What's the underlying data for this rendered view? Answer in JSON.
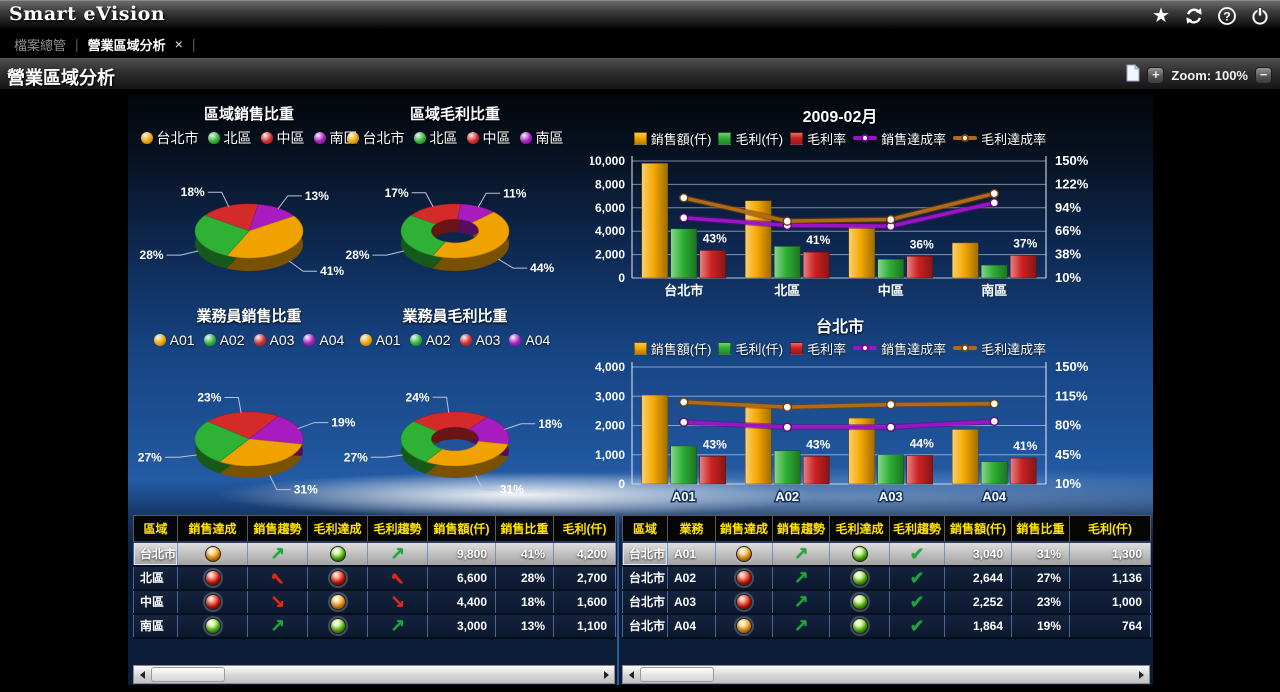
{
  "app": {
    "title": "Smart eVision"
  },
  "tabs": {
    "home": "檔案總管",
    "active": "營業區域分析",
    "close": "×",
    "separator": "|"
  },
  "toolbar": {
    "title": "營業區域分析",
    "zoom_in": "+",
    "zoom_out": "−",
    "zoom_label": "Zoom: 100%"
  },
  "chart_data": [
    {
      "type": "pie",
      "title": "區域銷售比重",
      "donut": false,
      "start_angle": -55,
      "legend": [
        {
          "label": "台北市",
          "color": "#f0a300"
        },
        {
          "label": "北區",
          "color": "#2eb135"
        },
        {
          "label": "中區",
          "color": "#d42a2a"
        },
        {
          "label": "南區",
          "color": "#a81bbf"
        }
      ],
      "slices": [
        {
          "label": "中區",
          "value": 18,
          "color": "#d42a2a"
        },
        {
          "label": "南區",
          "value": 13,
          "color": "#a81bbf"
        },
        {
          "label": "台北市",
          "value": 41,
          "color": "#f0a300"
        },
        {
          "label": "北區",
          "value": 28,
          "color": "#2eb135"
        }
      ]
    },
    {
      "type": "pie",
      "title": "區域毛利比重",
      "donut": true,
      "start_angle": -55,
      "legend": [
        {
          "label": "台北市",
          "color": "#f0a300"
        },
        {
          "label": "北區",
          "color": "#2eb135"
        },
        {
          "label": "中區",
          "color": "#d42a2a"
        },
        {
          "label": "南區",
          "color": "#a81bbf"
        }
      ],
      "slices": [
        {
          "label": "中區",
          "value": 17,
          "color": "#d42a2a"
        },
        {
          "label": "南區",
          "value": 11,
          "color": "#a81bbf"
        },
        {
          "label": "台北市",
          "value": 44,
          "color": "#f0a300"
        },
        {
          "label": "北區",
          "value": 28,
          "color": "#2eb135"
        }
      ]
    },
    {
      "type": "pie",
      "title": "業務員銷售比重",
      "donut": false,
      "start_angle": -50,
      "legend": [
        {
          "label": "A01",
          "color": "#f0a300"
        },
        {
          "label": "A02",
          "color": "#2eb135"
        },
        {
          "label": "A03",
          "color": "#d42a2a"
        },
        {
          "label": "A04",
          "color": "#a81bbf"
        }
      ],
      "slices": [
        {
          "label": "A03",
          "value": 23,
          "color": "#d42a2a"
        },
        {
          "label": "A04",
          "value": 19,
          "color": "#a81bbf"
        },
        {
          "label": "A01",
          "value": 31,
          "color": "#f0a300"
        },
        {
          "label": "A02",
          "value": 27,
          "color": "#2eb135"
        }
      ]
    },
    {
      "type": "pie",
      "title": "業務員毛利比重",
      "donut": true,
      "start_angle": -50,
      "legend": [
        {
          "label": "A01",
          "color": "#f0a300"
        },
        {
          "label": "A02",
          "color": "#2eb135"
        },
        {
          "label": "A03",
          "color": "#d42a2a"
        },
        {
          "label": "A04",
          "color": "#a81bbf"
        }
      ],
      "slices": [
        {
          "label": "A03",
          "value": 24,
          "color": "#d42a2a"
        },
        {
          "label": "A04",
          "value": 18,
          "color": "#a81bbf"
        },
        {
          "label": "A01",
          "value": 31,
          "color": "#f0a300"
        },
        {
          "label": "A02",
          "value": 27,
          "color": "#2eb135"
        }
      ]
    },
    {
      "type": "bar-line",
      "title": "2009-02月",
      "grid": true,
      "legend_position": "top",
      "categories": [
        "台北市",
        "北區",
        "中區",
        "南區"
      ],
      "left_axis": {
        "min": 0,
        "max": 10000,
        "tick_values": [
          0,
          2000,
          4000,
          6000,
          8000,
          10000
        ],
        "tick_labels": [
          "0",
          "2,000",
          "4,000",
          "6,000",
          "8,000",
          "10,000"
        ]
      },
      "right_axis": {
        "min": 10,
        "max": 150,
        "tick_values": [
          10,
          38,
          66,
          94,
          122,
          150
        ],
        "tick_labels": [
          "10%",
          "38%",
          "66%",
          "94%",
          "122%",
          "150%"
        ]
      },
      "series": [
        {
          "name": "銷售額(仟)",
          "kind": "bar",
          "axis": "left",
          "color": "#f5a800",
          "values": [
            9800,
            6600,
            4400,
            3000
          ]
        },
        {
          "name": "毛利(仟)",
          "kind": "bar",
          "axis": "left",
          "color": "#2eb135",
          "values": [
            4200,
            2700,
            1600,
            1100
          ]
        },
        {
          "name": "毛利率",
          "kind": "bar",
          "axis": "right",
          "color": "#cc2222",
          "values": [
            43,
            41,
            36,
            37
          ],
          "value_labels": [
            "43%",
            "41%",
            "36%",
            "37%"
          ]
        },
        {
          "name": "銷售達成率",
          "kind": "line",
          "axis": "right",
          "color": "#9b14c8",
          "values": [
            82,
            73,
            72,
            100
          ]
        },
        {
          "name": "毛利達成率",
          "kind": "line",
          "axis": "right",
          "color": "#b36a14",
          "values": [
            106,
            78,
            80,
            111
          ]
        }
      ]
    },
    {
      "type": "bar-line",
      "title": "台北市",
      "grid": true,
      "legend_position": "top",
      "categories": [
        "A01",
        "A02",
        "A03",
        "A04"
      ],
      "left_axis": {
        "min": 0,
        "max": 4000,
        "tick_values": [
          0,
          1000,
          2000,
          3000,
          4000
        ],
        "tick_labels": [
          "0",
          "1,000",
          "2,000",
          "3,000",
          "4,000"
        ]
      },
      "right_axis": {
        "min": 10,
        "max": 150,
        "tick_values": [
          10,
          45,
          80,
          115,
          150
        ],
        "tick_labels": [
          "10%",
          "45%",
          "80%",
          "115%",
          "150%"
        ]
      },
      "series": [
        {
          "name": "銷售額(仟)",
          "kind": "bar",
          "axis": "left",
          "color": "#f5a800",
          "values": [
            3040,
            2644,
            2252,
            1864
          ]
        },
        {
          "name": "毛利(仟)",
          "kind": "bar",
          "axis": "left",
          "color": "#2eb135",
          "values": [
            1300,
            1136,
            1000,
            764
          ]
        },
        {
          "name": "毛利率",
          "kind": "bar",
          "axis": "right",
          "color": "#cc2222",
          "values": [
            43,
            43,
            44,
            41
          ],
          "value_labels": [
            "43%",
            "43%",
            "44%",
            "41%"
          ]
        },
        {
          "name": "銷售達成率",
          "kind": "line",
          "axis": "right",
          "color": "#9b14c8",
          "values": [
            84,
            78,
            78,
            85
          ]
        },
        {
          "name": "毛利達成率",
          "kind": "line",
          "axis": "right",
          "color": "#b36a14",
          "values": [
            108,
            102,
            105,
            106
          ]
        }
      ]
    }
  ],
  "tables": {
    "left": {
      "headers": [
        "區域",
        "銷售達成",
        "銷售趨勢",
        "毛利達成",
        "毛利趨勢",
        "銷售額(仟)",
        "銷售比重",
        "毛利(仟)"
      ],
      "rows": [
        {
          "region": "台北市",
          "sales_ach": "orange",
          "sales_trend": "up",
          "profit_ach": "green",
          "profit_trend": "up",
          "sales_amt": "9,800",
          "sales_share": "41%",
          "profit_amt": "4,200",
          "selected": true
        },
        {
          "region": "北區",
          "sales_ach": "red",
          "sales_trend": "peak",
          "profit_ach": "red",
          "profit_trend": "peak",
          "sales_amt": "6,600",
          "sales_share": "28%",
          "profit_amt": "2,700",
          "selected": false
        },
        {
          "region": "中區",
          "sales_ach": "red",
          "sales_trend": "down",
          "profit_ach": "orange",
          "profit_trend": "down",
          "sales_amt": "4,400",
          "sales_share": "18%",
          "profit_amt": "1,600",
          "selected": false
        },
        {
          "region": "南區",
          "sales_ach": "green",
          "sales_trend": "up",
          "profit_ach": "green",
          "profit_trend": "up",
          "sales_amt": "3,000",
          "sales_share": "13%",
          "profit_amt": "1,100",
          "selected": false
        }
      ]
    },
    "right": {
      "headers": [
        "區域",
        "業務",
        "銷售達成",
        "銷售趨勢",
        "毛利達成",
        "毛利趨勢",
        "銷售額(仟)",
        "銷售比重",
        "毛利(仟)"
      ],
      "rows": [
        {
          "region": "台北市",
          "agent": "A01",
          "sales_ach": "orange",
          "sales_trend": "up",
          "profit_ach": "green",
          "profit_trend": "check",
          "sales_amt": "3,040",
          "sales_share": "31%",
          "profit_amt": "1,300",
          "selected": true
        },
        {
          "region": "台北市",
          "agent": "A02",
          "sales_ach": "red",
          "sales_trend": "up",
          "profit_ach": "green",
          "profit_trend": "check",
          "sales_amt": "2,644",
          "sales_share": "27%",
          "profit_amt": "1,136",
          "selected": false
        },
        {
          "region": "台北市",
          "agent": "A03",
          "sales_ach": "red",
          "sales_trend": "up",
          "profit_ach": "green",
          "profit_trend": "check",
          "sales_amt": "2,252",
          "sales_share": "23%",
          "profit_amt": "1,000",
          "selected": false
        },
        {
          "region": "台北市",
          "agent": "A04",
          "sales_ach": "orange",
          "sales_trend": "up",
          "profit_ach": "green",
          "profit_trend": "check",
          "sales_amt": "1,864",
          "sales_share": "19%",
          "profit_amt": "764",
          "selected": false
        }
      ]
    }
  }
}
